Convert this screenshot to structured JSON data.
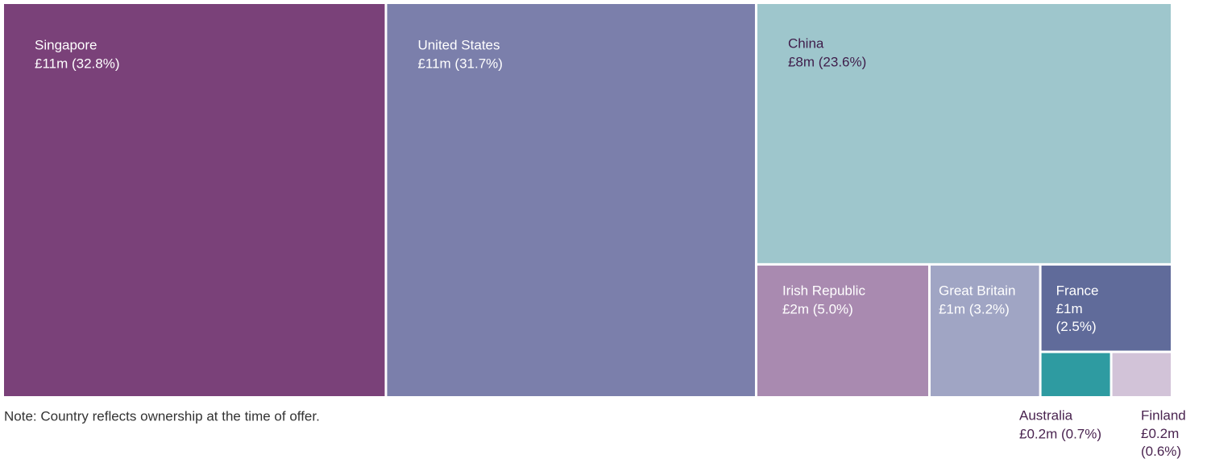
{
  "chart_data": {
    "type": "treemap",
    "categories": [
      "Singapore",
      "United States",
      "China",
      "Irish Republic",
      "Great Britain",
      "France",
      "Australia",
      "Finland"
    ],
    "values": [
      32.8,
      31.7,
      23.6,
      5.0,
      3.2,
      2.5,
      0.7,
      0.6
    ],
    "value_labels": [
      "£11m (32.8%)",
      "£11m (31.7%)",
      "£8m (23.6%)",
      "£2m (5.0%)",
      "£1m (3.2%)",
      "£1m (2.5%)",
      "£0.2m (0.7%)",
      "£0.2m (0.6%)"
    ],
    "colors": [
      "#7a4179",
      "#7b7fab",
      "#9ec6cc",
      "#a98ab0",
      "#a0a5c4",
      "#606b9a",
      "#2e9ba1",
      "#d2c3d8"
    ],
    "note": "Note: Country reflects ownership at the time of offer."
  }
}
